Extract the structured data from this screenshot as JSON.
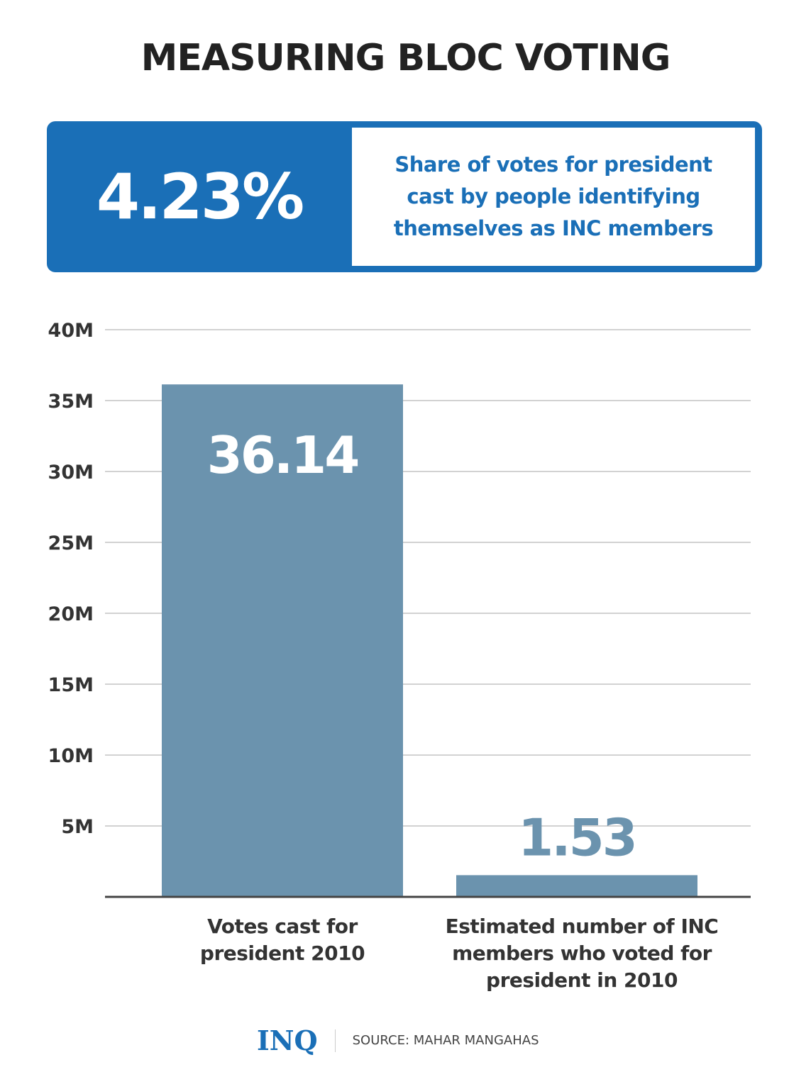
{
  "title": "MEASURING BLOC VOTING",
  "highlight": {
    "value": "4.23%",
    "description": [
      "Share of votes for president",
      "cast by people identifying",
      "themselves as INC members"
    ]
  },
  "chart_data": {
    "type": "bar",
    "categories": [
      [
        "Votes cast for",
        "president 2010"
      ],
      [
        "Estimated number of INC",
        "members who voted for",
        "president in 2010"
      ]
    ],
    "values": [
      36.14,
      1.53
    ],
    "data_labels": [
      "36.14",
      "1.53"
    ],
    "unit": "M",
    "ylim": [
      0,
      40
    ],
    "yticks": [
      5,
      10,
      15,
      20,
      25,
      30,
      35,
      40
    ],
    "ytick_labels": [
      "5M",
      "10M",
      "15M",
      "20M",
      "25M",
      "30M",
      "35M",
      "40M"
    ],
    "grid": true,
    "colors": {
      "bar": "#6b93ae",
      "label_on_bar": "#ffffff",
      "label_above_bar": "#6b93ae"
    }
  },
  "footer": {
    "logo": "INQ",
    "source": "SOURCE: MAHAR MANGAHAS"
  },
  "colors": {
    "accent": "#1a6fb7",
    "text": "#222222"
  }
}
